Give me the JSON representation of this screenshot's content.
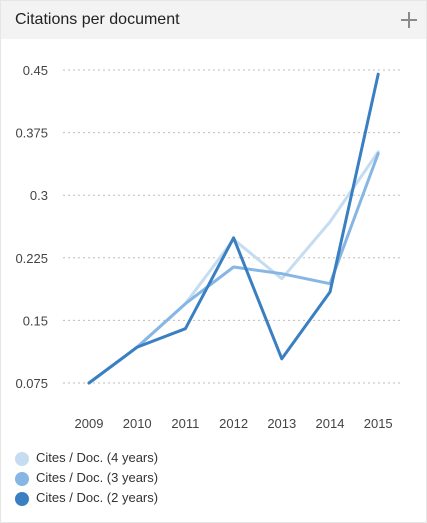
{
  "panel": {
    "title": "Citations per document",
    "expand_icon": "plus-icon"
  },
  "legend": [
    {
      "label": "Cites / Doc. (4 years)",
      "color": "#c5dcf1"
    },
    {
      "label": "Cites / Doc. (3 years)",
      "color": "#86b6e3"
    },
    {
      "label": "Cites / Doc. (2 years)",
      "color": "#3a7fc1"
    }
  ],
  "chart_data": {
    "type": "line",
    "x": [
      "2009",
      "2010",
      "2011",
      "2012",
      "2013",
      "2014",
      "2015"
    ],
    "y_ticks": [
      "0.075",
      "0.15",
      "0.225",
      "0.3",
      "0.375",
      "0.45"
    ],
    "ylim": [
      0.075,
      0.45
    ],
    "grid": true,
    "legend_position": "bottom-left",
    "series": [
      {
        "name": "Cites / Doc. (4 years)",
        "color": "#c5dcf1",
        "values": [
          0.075,
          0.118,
          0.17,
          0.247,
          0.2,
          0.268,
          0.352
        ]
      },
      {
        "name": "Cites / Doc. (3 years)",
        "color": "#86b6e3",
        "values": [
          0.075,
          0.118,
          0.17,
          0.214,
          0.206,
          0.194,
          0.35
        ]
      },
      {
        "name": "Cites / Doc. (2 years)",
        "color": "#3a7fc1",
        "values": [
          0.075,
          0.118,
          0.14,
          0.249,
          0.104,
          0.184,
          0.445
        ]
      }
    ]
  }
}
